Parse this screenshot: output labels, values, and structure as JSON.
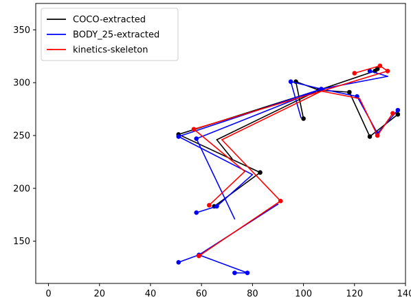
{
  "chart_data": {
    "type": "line",
    "xlim": [
      -5,
      140
    ],
    "ylim": [
      110,
      375
    ],
    "x_ticks": [
      0,
      20,
      40,
      60,
      80,
      100,
      120,
      140
    ],
    "y_ticks": [
      150,
      200,
      250,
      300,
      350
    ],
    "grid": false,
    "legend_position": "top-left",
    "legend": [
      {
        "label": "COCO-extracted",
        "color": "#000000"
      },
      {
        "label": "BODY_25-extracted",
        "color": "#0000ff"
      },
      {
        "label": "kinetics-skeleton",
        "color": "#ff0000"
      }
    ],
    "series": [
      {
        "name": "COCO-extracted",
        "color": "#000000",
        "points": [
          [
            51,
            251
          ],
          [
            83,
            215
          ],
          [
            65,
            183
          ],
          [
            97,
            301
          ],
          [
            100,
            266
          ],
          [
            106,
            293
          ],
          [
            118,
            291
          ],
          [
            126,
            249
          ],
          [
            137,
            270
          ],
          [
            128,
            311
          ],
          [
            129,
            313
          ]
        ],
        "segments": [
          [
            [
              106,
              293
            ],
            [
              51,
              251
            ]
          ],
          [
            [
              51,
              251
            ],
            [
              83,
              215
            ]
          ],
          [
            [
              83,
              215
            ],
            [
              65,
              183
            ]
          ],
          [
            [
              106,
              293
            ],
            [
              97,
              301
            ]
          ],
          [
            [
              97,
              301
            ],
            [
              100,
              266
            ]
          ],
          [
            [
              106,
              293
            ],
            [
              118,
              291
            ]
          ],
          [
            [
              118,
              291
            ],
            [
              126,
              249
            ]
          ],
          [
            [
              126,
              249
            ],
            [
              137,
              270
            ]
          ],
          [
            [
              106,
              293
            ],
            [
              128,
              311
            ]
          ],
          [
            [
              128,
              311
            ],
            [
              129,
              313
            ]
          ],
          [
            [
              106,
              293
            ],
            [
              66,
              246
            ]
          ],
          [
            [
              66,
              246
            ],
            [
              72,
              228
            ]
          ]
        ]
      },
      {
        "name": "BODY_25-extracted",
        "color": "#0000ff",
        "points": [
          [
            51,
            249
          ],
          [
            58,
            247
          ],
          [
            66,
            183
          ],
          [
            58,
            177
          ],
          [
            95,
            301
          ],
          [
            107,
            294
          ],
          [
            121,
            287
          ],
          [
            129,
            252
          ],
          [
            137,
            274
          ],
          [
            126,
            311
          ],
          [
            51,
            130
          ],
          [
            59,
            137
          ],
          [
            78,
            120
          ],
          [
            73,
            120
          ]
        ],
        "segments": [
          [
            [
              107,
              294
            ],
            [
              51,
              249
            ]
          ],
          [
            [
              51,
              249
            ],
            [
              80,
              213
            ]
          ],
          [
            [
              80,
              213
            ],
            [
              66,
              183
            ]
          ],
          [
            [
              66,
              183
            ],
            [
              58,
              177
            ]
          ],
          [
            [
              107,
              294
            ],
            [
              58,
              247
            ]
          ],
          [
            [
              58,
              247
            ],
            [
              73,
              171
            ]
          ],
          [
            [
              107,
              294
            ],
            [
              95,
              301
            ]
          ],
          [
            [
              95,
              301
            ],
            [
              99,
              267
            ]
          ],
          [
            [
              107,
              294
            ],
            [
              121,
              287
            ]
          ],
          [
            [
              121,
              287
            ],
            [
              129,
              252
            ]
          ],
          [
            [
              129,
              252
            ],
            [
              137,
              274
            ]
          ],
          [
            [
              107,
              294
            ],
            [
              133,
              306
            ]
          ],
          [
            [
              133,
              306
            ],
            [
              126,
              311
            ]
          ],
          [
            [
              90,
              185
            ],
            [
              59,
              137
            ]
          ],
          [
            [
              59,
              137
            ],
            [
              51,
              130
            ]
          ],
          [
            [
              59,
              137
            ],
            [
              78,
              120
            ]
          ],
          [
            [
              78,
              120
            ],
            [
              73,
              120
            ]
          ]
        ]
      },
      {
        "name": "kinetics-skeleton",
        "color": "#ff0000",
        "points": [
          [
            91,
            188
          ],
          [
            57,
            256
          ],
          [
            63,
            184
          ],
          [
            130,
            316
          ],
          [
            120,
            309
          ],
          [
            129,
            250
          ],
          [
            135,
            271
          ],
          [
            59,
            136
          ],
          [
            133,
            311
          ]
        ],
        "segments": [
          [
            [
              107,
              292
            ],
            [
              57,
              256
            ]
          ],
          [
            [
              57,
              256
            ],
            [
              77,
              216
            ]
          ],
          [
            [
              77,
              216
            ],
            [
              63,
              184
            ]
          ],
          [
            [
              107,
              292
            ],
            [
              68,
              246
            ]
          ],
          [
            [
              68,
              246
            ],
            [
              91,
              188
            ]
          ],
          [
            [
              91,
              188
            ],
            [
              59,
              136
            ]
          ],
          [
            [
              107,
              292
            ],
            [
              122,
              285
            ]
          ],
          [
            [
              122,
              285
            ],
            [
              129,
              250
            ]
          ],
          [
            [
              129,
              250
            ],
            [
              135,
              271
            ]
          ],
          [
            [
              107,
              292
            ],
            [
              133,
              311
            ]
          ],
          [
            [
              133,
              311
            ],
            [
              130,
              316
            ]
          ],
          [
            [
              130,
              316
            ],
            [
              120,
              309
            ]
          ]
        ]
      }
    ]
  }
}
